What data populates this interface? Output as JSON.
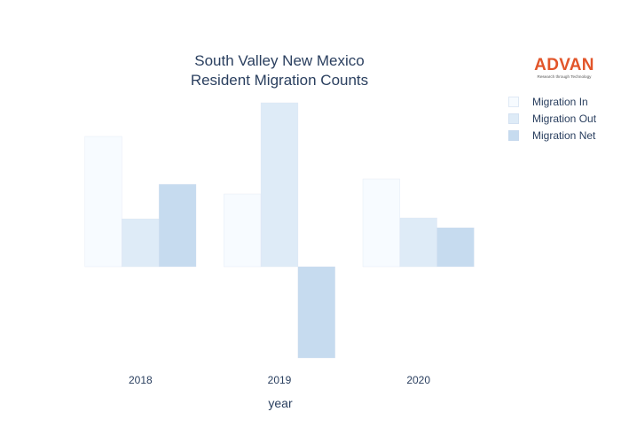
{
  "chart_data": {
    "type": "bar",
    "title": "South Valley New Mexico\nResident Migration Counts",
    "title_lines": [
      "South Valley New Mexico",
      "Resident Migration Counts"
    ],
    "xlabel": "year",
    "ylabel": "",
    "categories": [
      "2018",
      "2019",
      "2020"
    ],
    "series": [
      {
        "name": "Migration In",
        "values": [
          147,
          82,
          99
        ],
        "color": "#f7fbff"
      },
      {
        "name": "Migration Out",
        "values": [
          54,
          185,
          55
        ],
        "color": "#deebf7"
      },
      {
        "name": "Migration Net",
        "values": [
          93,
          -103,
          44
        ],
        "color": "#c6dbef"
      }
    ],
    "ylim": [
      -103,
      185
    ],
    "y_tick_labels_shown": false,
    "grid": false,
    "legend_position": "top-right"
  },
  "logo": {
    "word": "ADVAN",
    "tagline": "Research through Technology",
    "color": "#e2552a"
  }
}
